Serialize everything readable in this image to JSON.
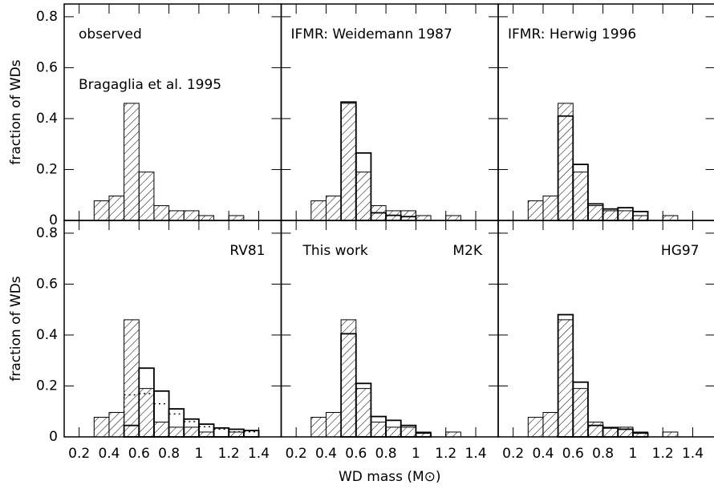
{
  "chart_data": [
    {
      "type": "histogram",
      "annotations": [
        "observed",
        "Bragaglia et al. 1995"
      ],
      "ylabel": "fraction of WDs",
      "bins": [
        0.3,
        0.4,
        0.5,
        0.6,
        0.7,
        0.8,
        0.9,
        1.0,
        1.1,
        1.2,
        1.3,
        1.4
      ],
      "series": [
        {
          "style": "hatched",
          "color": "#000000",
          "values": [
            0.077,
            0.096,
            0.46,
            0.19,
            0.058,
            0.038,
            0.038,
            0.019,
            0,
            0.019,
            0
          ]
        }
      ],
      "xlim": [
        0.1,
        1.55
      ],
      "ylim": [
        0,
        0.85
      ],
      "xticks": [
        0.2,
        0.4,
        0.6,
        0.8,
        1,
        1.2,
        1.4
      ],
      "yticks": [
        0,
        0.2,
        0.4,
        0.6,
        0.8
      ],
      "tick_labels": {
        "x": false,
        "y": true
      }
    },
    {
      "type": "histogram",
      "annotations": [
        "IFMR: Weidemann 1987"
      ],
      "bins": [
        0.3,
        0.4,
        0.5,
        0.6,
        0.7,
        0.8,
        0.9,
        1.0,
        1.1,
        1.2,
        1.3,
        1.4
      ],
      "series": [
        {
          "style": "hatched",
          "color": "#000000",
          "values": [
            0.077,
            0.096,
            0.46,
            0.19,
            0.058,
            0.038,
            0.038,
            0.019,
            0,
            0.019,
            0
          ]
        },
        {
          "style": "solid",
          "color": "#000000",
          "values": [
            0,
            0,
            0.465,
            0.265,
            0.03,
            0.02,
            0.015,
            0,
            0,
            0,
            0
          ]
        }
      ],
      "xlim": [
        0.1,
        1.55
      ],
      "ylim": [
        0,
        0.85
      ],
      "xticks": [
        0.2,
        0.4,
        0.6,
        0.8,
        1,
        1.2,
        1.4
      ],
      "yticks": [
        0,
        0.2,
        0.4,
        0.6,
        0.8
      ],
      "tick_labels": {
        "x": false,
        "y": false
      }
    },
    {
      "type": "histogram",
      "annotations": [
        "IFMR: Herwig 1996"
      ],
      "bins": [
        0.3,
        0.4,
        0.5,
        0.6,
        0.7,
        0.8,
        0.9,
        1.0,
        1.1,
        1.2,
        1.3,
        1.4
      ],
      "series": [
        {
          "style": "hatched",
          "color": "#000000",
          "values": [
            0.077,
            0.096,
            0.46,
            0.19,
            0.058,
            0.038,
            0.038,
            0.019,
            0,
            0.019,
            0
          ]
        },
        {
          "style": "solid",
          "color": "#000000",
          "values": [
            0,
            0,
            0.41,
            0.22,
            0.065,
            0.045,
            0.05,
            0.035,
            0,
            0,
            0
          ]
        }
      ],
      "xlim": [
        0.1,
        1.55
      ],
      "ylim": [
        0,
        0.85
      ],
      "xticks": [
        0.2,
        0.4,
        0.6,
        0.8,
        1,
        1.2,
        1.4
      ],
      "yticks": [
        0,
        0.2,
        0.4,
        0.6,
        0.8
      ],
      "tick_labels": {
        "x": false,
        "y": false
      }
    },
    {
      "type": "histogram",
      "annotations": [
        "RV81"
      ],
      "ylabel": "fraction of WDs",
      "bins": [
        0.3,
        0.4,
        0.5,
        0.6,
        0.7,
        0.8,
        0.9,
        1.0,
        1.1,
        1.2,
        1.3,
        1.4
      ],
      "series": [
        {
          "style": "hatched",
          "color": "#000000",
          "values": [
            0.077,
            0.096,
            0.46,
            0.19,
            0.058,
            0.038,
            0.038,
            0.019,
            0,
            0.019,
            0
          ]
        },
        {
          "style": "solid",
          "color": "#000000",
          "values": [
            0,
            0,
            0.045,
            0.27,
            0.18,
            0.11,
            0.07,
            0.05,
            0.035,
            0.03,
            0.025
          ]
        },
        {
          "style": "dotted",
          "color": "#000000",
          "values": [
            0,
            0,
            0.165,
            0.17,
            0.13,
            0.09,
            0.06,
            0.04,
            0.03,
            0.02,
            0.02
          ]
        }
      ],
      "xlim": [
        0.1,
        1.55
      ],
      "ylim": [
        0,
        0.85
      ],
      "xticks": [
        0.2,
        0.4,
        0.6,
        0.8,
        1,
        1.2,
        1.4
      ],
      "yticks": [
        0,
        0.2,
        0.4,
        0.6,
        0.8
      ],
      "tick_labels": {
        "x": true,
        "y": true
      }
    },
    {
      "type": "histogram",
      "annotations": [
        "This work",
        "M2K"
      ],
      "xlabel": "WD mass  (M⊙)",
      "bins": [
        0.3,
        0.4,
        0.5,
        0.6,
        0.7,
        0.8,
        0.9,
        1.0,
        1.1,
        1.2,
        1.3,
        1.4
      ],
      "series": [
        {
          "style": "hatched",
          "color": "#000000",
          "values": [
            0.077,
            0.096,
            0.46,
            0.19,
            0.058,
            0.038,
            0.038,
            0.019,
            0,
            0.019,
            0
          ]
        },
        {
          "style": "solid",
          "color": "#000000",
          "values": [
            0,
            0,
            0.405,
            0.21,
            0.08,
            0.065,
            0.045,
            0.015,
            0,
            0,
            0
          ]
        }
      ],
      "xlim": [
        0.1,
        1.55
      ],
      "ylim": [
        0,
        0.85
      ],
      "xticks": [
        0.2,
        0.4,
        0.6,
        0.8,
        1,
        1.2,
        1.4
      ],
      "yticks": [
        0,
        0.2,
        0.4,
        0.6,
        0.8
      ],
      "tick_labels": {
        "x": true,
        "y": false
      }
    },
    {
      "type": "histogram",
      "annotations": [
        "HG97"
      ],
      "bins": [
        0.3,
        0.4,
        0.5,
        0.6,
        0.7,
        0.8,
        0.9,
        1.0,
        1.1,
        1.2,
        1.3,
        1.4
      ],
      "series": [
        {
          "style": "hatched",
          "color": "#000000",
          "values": [
            0.077,
            0.096,
            0.46,
            0.19,
            0.058,
            0.038,
            0.038,
            0.019,
            0,
            0.019,
            0
          ]
        },
        {
          "style": "solid",
          "color": "#000000",
          "values": [
            0,
            0,
            0.48,
            0.215,
            0.045,
            0.035,
            0.03,
            0.015,
            0,
            0,
            0
          ]
        }
      ],
      "xlim": [
        0.1,
        1.55
      ],
      "ylim": [
        0,
        0.85
      ],
      "xticks": [
        0.2,
        0.4,
        0.6,
        0.8,
        1,
        1.2,
        1.4
      ],
      "yticks": [
        0,
        0.2,
        0.4,
        0.6,
        0.8
      ],
      "tick_labels": {
        "x": true,
        "y": false
      }
    }
  ]
}
